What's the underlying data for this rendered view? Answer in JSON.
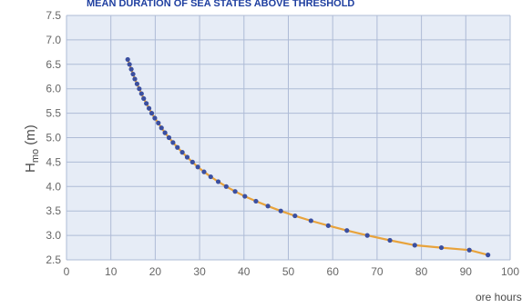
{
  "chart_data": {
    "type": "scatter",
    "title": "MEAN DURATION OF SEA STATES ABOVE THRESHOLD",
    "ylabel": {
      "main": "H",
      "sub": "mo",
      "unit": " (m)"
    },
    "xlabel": "ore hours",
    "xlim": [
      0,
      100
    ],
    "ylim": [
      2.5,
      7.5
    ],
    "xticks": [
      0,
      10,
      20,
      30,
      40,
      50,
      60,
      70,
      80,
      90,
      100
    ],
    "yticks": [
      2.5,
      3.0,
      3.5,
      4.0,
      4.5,
      5.0,
      5.5,
      6.0,
      6.5,
      7.0,
      7.5
    ],
    "ytick_labels": [
      "2.5",
      "3.0",
      "3.5",
      "4.0",
      "4.5",
      "5.0",
      "5.5",
      "6.0",
      "6.5",
      "7.0",
      "7.5"
    ],
    "grid": true,
    "colors": {
      "plot_bg": "#e6ecf6",
      "grid": "#aebbd6",
      "fit_line": "#e8a33c",
      "points": "#3b4fa0"
    },
    "series": [
      {
        "fit_line": true,
        "x": [
          13.8,
          14.2,
          14.6,
          15.0,
          15.4,
          15.9,
          16.4,
          16.9,
          17.4,
          18.0,
          18.6,
          19.2,
          19.9,
          20.7,
          21.4,
          22.2,
          23.1,
          24.0,
          25.0,
          26.1,
          27.2,
          28.4,
          29.6,
          31.0,
          32.5,
          34.2,
          36.0,
          38.0,
          40.2,
          42.7,
          45.4,
          48.3,
          51.5,
          55.1,
          59.0,
          63.2,
          67.8,
          72.9,
          78.5,
          84.5,
          90.8,
          95.0
        ],
        "y": [
          6.6,
          6.5,
          6.4,
          6.3,
          6.2,
          6.1,
          6.0,
          5.9,
          5.8,
          5.7,
          5.6,
          5.5,
          5.4,
          5.3,
          5.2,
          5.1,
          5.0,
          4.9,
          4.8,
          4.7,
          4.6,
          4.5,
          4.4,
          4.3,
          4.2,
          4.1,
          4.0,
          3.9,
          3.8,
          3.7,
          3.6,
          3.5,
          3.4,
          3.3,
          3.2,
          3.1,
          3.0,
          2.9,
          2.8,
          2.75,
          2.7,
          2.6
        ]
      }
    ]
  }
}
